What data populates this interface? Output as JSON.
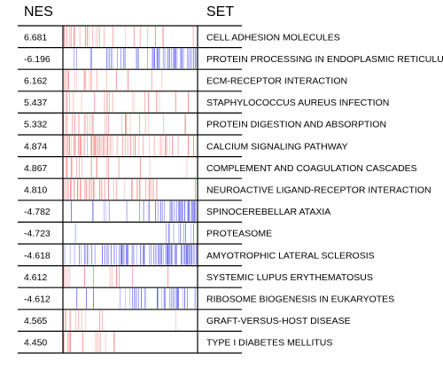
{
  "headers": {
    "nes": "NES",
    "set": "SET"
  },
  "colors": {
    "positive": "#f06060",
    "negative": "#4040f0",
    "line": "#000000"
  },
  "chart_data": {
    "type": "table",
    "columns": [
      "NES",
      "SET"
    ],
    "rows": [
      {
        "nes": "6.681",
        "set": "CELL ADHESION MOLECULES",
        "sign": "positive",
        "dens": [
          [
            0.0,
            0.1,
            0.55
          ],
          [
            0.1,
            0.3,
            0.35
          ],
          [
            0.3,
            0.75,
            0.15
          ],
          [
            0.75,
            1.0,
            0.06
          ]
        ]
      },
      {
        "nes": "-6.196",
        "set": "PROTEIN PROCESSING IN ENDOPLASMIC RETICULUM",
        "sign": "negative",
        "dens": [
          [
            0.0,
            0.3,
            0.1
          ],
          [
            0.3,
            0.6,
            0.3
          ],
          [
            0.6,
            0.85,
            0.45
          ],
          [
            0.85,
            1.0,
            0.6
          ]
        ]
      },
      {
        "nes": "6.162",
        "set": "ECM-RECEPTOR INTERACTION",
        "sign": "positive",
        "dens": [
          [
            0.0,
            0.18,
            0.45
          ],
          [
            0.18,
            0.5,
            0.12
          ],
          [
            0.5,
            1.0,
            0.05
          ]
        ]
      },
      {
        "nes": "5.437",
        "set": "STAPHYLOCOCCUS AUREUS INFECTION",
        "sign": "positive",
        "dens": [
          [
            0.0,
            0.05,
            0.6
          ],
          [
            0.05,
            0.45,
            0.14
          ],
          [
            0.45,
            1.0,
            0.06
          ]
        ]
      },
      {
        "nes": "5.332",
        "set": "PROTEIN DIGESTION AND ABSORPTION",
        "sign": "positive",
        "dens": [
          [
            0.0,
            0.22,
            0.35
          ],
          [
            0.22,
            0.75,
            0.16
          ],
          [
            0.75,
            1.0,
            0.05
          ]
        ]
      },
      {
        "nes": "4.874",
        "set": "CALCIUM SIGNALING PATHWAY",
        "sign": "positive",
        "dens": [
          [
            0.0,
            0.4,
            0.45
          ],
          [
            0.4,
            0.8,
            0.25
          ],
          [
            0.8,
            1.0,
            0.1
          ]
        ]
      },
      {
        "nes": "4.867",
        "set": "COMPLEMENT AND COAGULATION CASCADES",
        "sign": "positive",
        "dens": [
          [
            0.0,
            0.06,
            0.55
          ],
          [
            0.06,
            0.5,
            0.12
          ],
          [
            0.5,
            1.0,
            0.05
          ]
        ]
      },
      {
        "nes": "4.810",
        "set": "NEUROACTIVE LIGAND-RECEPTOR INTERACTION",
        "sign": "positive",
        "dens": [
          [
            0.0,
            0.35,
            0.35
          ],
          [
            0.35,
            0.7,
            0.18
          ],
          [
            0.7,
            1.0,
            0.08
          ]
        ]
      },
      {
        "nes": "-4.782",
        "set": "SPINOCEREBELLAR ATAXIA",
        "sign": "negative",
        "dens": [
          [
            0.0,
            0.2,
            0.02
          ],
          [
            0.2,
            0.55,
            0.18
          ],
          [
            0.55,
            0.85,
            0.35
          ],
          [
            0.85,
            1.0,
            0.55
          ]
        ]
      },
      {
        "nes": "-4.723",
        "set": "PROTEASOME",
        "sign": "negative",
        "dens": [
          [
            0.0,
            0.7,
            0.01
          ],
          [
            0.7,
            0.85,
            0.15
          ],
          [
            0.85,
            1.0,
            0.45
          ]
        ]
      },
      {
        "nes": "-4.618",
        "set": "AMYOTROPHIC LATERAL SCLEROSIS",
        "sign": "negative",
        "dens": [
          [
            0.0,
            0.3,
            0.25
          ],
          [
            0.3,
            0.65,
            0.45
          ],
          [
            0.65,
            1.0,
            0.7
          ]
        ]
      },
      {
        "nes": "4.612",
        "set": "SYSTEMIC LUPUS ERYTHEMATOSUS",
        "sign": "positive",
        "dens": [
          [
            0.0,
            0.06,
            0.55
          ],
          [
            0.06,
            0.5,
            0.1
          ],
          [
            0.5,
            1.0,
            0.06
          ]
        ]
      },
      {
        "nes": "-4.612",
        "set": "RIBOSOME BIOGENESIS IN EUKARYOTES",
        "sign": "negative",
        "dens": [
          [
            0.0,
            0.4,
            0.04
          ],
          [
            0.4,
            0.75,
            0.2
          ],
          [
            0.75,
            1.0,
            0.35
          ]
        ]
      },
      {
        "nes": "4.565",
        "set": "GRAFT-VERSUS-HOST DISEASE",
        "sign": "positive",
        "dens": [
          [
            0.0,
            0.05,
            0.5
          ],
          [
            0.05,
            0.3,
            0.06
          ],
          [
            0.3,
            1.0,
            0.015
          ]
        ]
      },
      {
        "nes": "4.450",
        "set": "TYPE I DIABETES MELLITUS",
        "sign": "positive",
        "dens": [
          [
            0.0,
            0.06,
            0.5
          ],
          [
            0.06,
            0.4,
            0.06
          ],
          [
            0.4,
            1.0,
            0.015
          ]
        ]
      }
    ]
  }
}
